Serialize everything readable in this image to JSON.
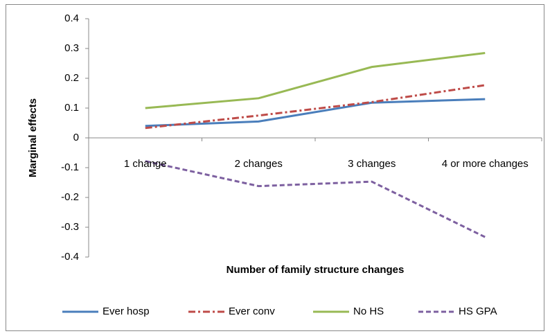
{
  "chart_data": {
    "type": "line",
    "x_label": "Number of family structure changes",
    "y_label": "Marginal effects",
    "categories": [
      "1 change",
      "2 changes",
      "3 changes",
      "4 or more changes"
    ],
    "series": [
      {
        "name": "Ever hosp",
        "color": "#4a7ebb",
        "dash": "solid",
        "values": [
          0.04,
          0.055,
          0.118,
          0.13
        ]
      },
      {
        "name": "Ever conv",
        "color": "#be4b48",
        "dash": "dashdot",
        "values": [
          0.033,
          0.075,
          0.12,
          0.177
        ]
      },
      {
        "name": "No HS",
        "color": "#98b954",
        "dash": "solid",
        "values": [
          0.1,
          0.133,
          0.238,
          0.285
        ]
      },
      {
        "name": "HS GPA",
        "color": "#7d60a0",
        "dash": "dash",
        "values": [
          -0.078,
          -0.162,
          -0.147,
          -0.333
        ]
      }
    ],
    "ylim": [
      -0.4,
      0.4
    ],
    "yticks": [
      -0.4,
      -0.3,
      -0.2,
      -0.1,
      0,
      0.1,
      0.2,
      0.3,
      0.4
    ],
    "grid": false,
    "legend": "bottom"
  }
}
